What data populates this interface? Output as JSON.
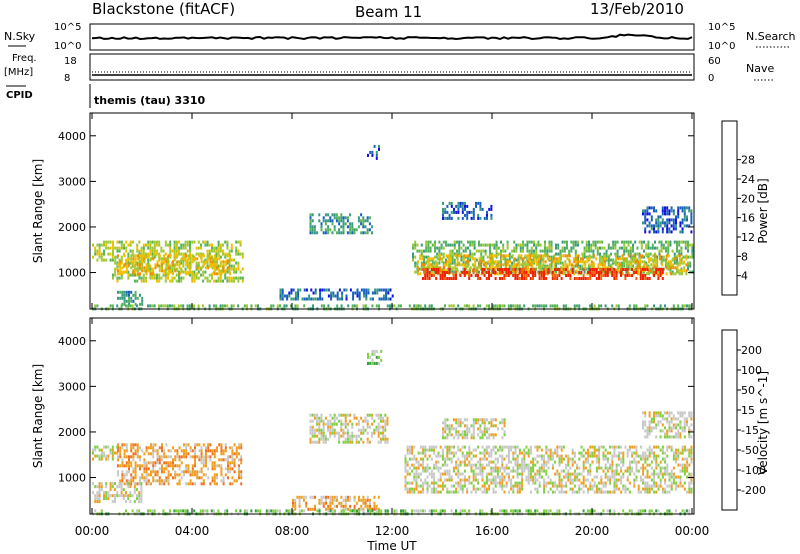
{
  "header": {
    "station": "Blackstone (fitACF)",
    "beam": "Beam 11",
    "date": "13/Feb/2010"
  },
  "panels": {
    "nsky": {
      "label": "N.Sky",
      "ticks": [
        "10^5",
        "10^0"
      ],
      "right_ticks": [
        "10^5",
        "10^0"
      ],
      "right_label": "N.Search"
    },
    "freq": {
      "label_top": "Freq.",
      "label_unit": "[MHz]",
      "ticks": [
        "18",
        "8"
      ],
      "right_ticks": [
        "60",
        "0"
      ],
      "right_label": "Nave"
    },
    "cpid": {
      "label": "CPID",
      "text": "themis (tau) 3310"
    }
  },
  "chart_data": [
    {
      "type": "heatmap",
      "title": "",
      "xlabel": "Time UT",
      "ylabel": "Slant Range [km]",
      "x_ticks": [
        "00:00",
        "04:00",
        "08:00",
        "12:00",
        "16:00",
        "20:00",
        "00:00"
      ],
      "y_ticks": [
        "1000",
        "2000",
        "3000",
        "4000"
      ],
      "ylim": [
        200,
        4500
      ],
      "colorbar": {
        "label": "Power [dB]",
        "ticks": [
          "4",
          "8",
          "12",
          "16",
          "20",
          "24",
          "28"
        ],
        "colors": [
          "#1010e0",
          "#1860c0",
          "#3a9a80",
          "#55b45a",
          "#a0c830",
          "#f0c000",
          "#f09000",
          "#f06010",
          "#f02000"
        ]
      },
      "regions": [
        {
          "t": [
            0.0,
            0.8
          ],
          "r": [
            1300,
            1700
          ],
          "level": 4
        },
        {
          "t": [
            0.8,
            6.0
          ],
          "r": [
            800,
            1700
          ],
          "level": 4
        },
        {
          "t": [
            1.0,
            5.5
          ],
          "r": [
            1000,
            1400
          ],
          "level": 5
        },
        {
          "t": [
            1.0,
            2.0
          ],
          "r": [
            300,
            600
          ],
          "level": 2
        },
        {
          "t": [
            8.7,
            11.2
          ],
          "r": [
            1900,
            2300
          ],
          "level": 2
        },
        {
          "t": [
            7.5,
            12.0
          ],
          "r": [
            450,
            650
          ],
          "level": 1
        },
        {
          "t": [
            11.0,
            11.5
          ],
          "r": [
            3500,
            3800
          ],
          "level": 1
        },
        {
          "t": [
            12.8,
            24.0
          ],
          "r": [
            1000,
            1700
          ],
          "level": 3
        },
        {
          "t": [
            13.0,
            23.8
          ],
          "r": [
            1000,
            1400
          ],
          "level": 5
        },
        {
          "t": [
            13.2,
            22.8
          ],
          "r": [
            850,
            1100
          ],
          "level": 8
        },
        {
          "t": [
            22.0,
            24.0
          ],
          "r": [
            1900,
            2450
          ],
          "level": 1
        },
        {
          "t": [
            14.0,
            16.0
          ],
          "r": [
            2200,
            2550
          ],
          "level": 1
        },
        {
          "t": [
            0.0,
            24.0
          ],
          "r": [
            200,
            300
          ],
          "level": 3
        }
      ]
    },
    {
      "type": "heatmap",
      "title": "",
      "xlabel": "Time UT",
      "ylabel": "Slant Range [km]",
      "x_ticks": [
        "00:00",
        "04:00",
        "08:00",
        "12:00",
        "16:00",
        "20:00",
        "00:00"
      ],
      "y_ticks": [
        "1000",
        "2000",
        "3000",
        "4000"
      ],
      "ylim": [
        200,
        4500
      ],
      "colorbar": {
        "label": "Velocity [m s^-1]",
        "ticks": [
          "200",
          "100",
          "50",
          "15",
          "-15",
          "-50",
          "-100",
          "-200"
        ],
        "colors": [
          "#2030b0",
          "#2070c0",
          "#30a040",
          "#80d040",
          "#c8c8c8",
          "#f0a020",
          "#f07020",
          "#f03010",
          "#e00000"
        ]
      },
      "regions": [
        {
          "t": [
            1.0,
            6.0
          ],
          "r": [
            850,
            1750
          ],
          "level": 5
        },
        {
          "t": [
            0.0,
            1.0
          ],
          "r": [
            1400,
            1700
          ],
          "level": 4
        },
        {
          "t": [
            0.0,
            2.0
          ],
          "r": [
            450,
            900
          ],
          "level": 4
        },
        {
          "t": [
            8.7,
            11.8
          ],
          "r": [
            1800,
            2400
          ],
          "level": 4
        },
        {
          "t": [
            8.0,
            11.5
          ],
          "r": [
            300,
            600
          ],
          "level": 5
        },
        {
          "t": [
            11.0,
            11.6
          ],
          "r": [
            3500,
            3800
          ],
          "level": 3
        },
        {
          "t": [
            12.5,
            24.0
          ],
          "r": [
            700,
            1700
          ],
          "level": 4
        },
        {
          "t": [
            14.0,
            16.5
          ],
          "r": [
            1900,
            2300
          ],
          "level": 4
        },
        {
          "t": [
            22.0,
            24.0
          ],
          "r": [
            1900,
            2450
          ],
          "level": 4
        },
        {
          "t": [
            0.0,
            24.0
          ],
          "r": [
            200,
            300
          ],
          "level": 3
        }
      ]
    }
  ]
}
